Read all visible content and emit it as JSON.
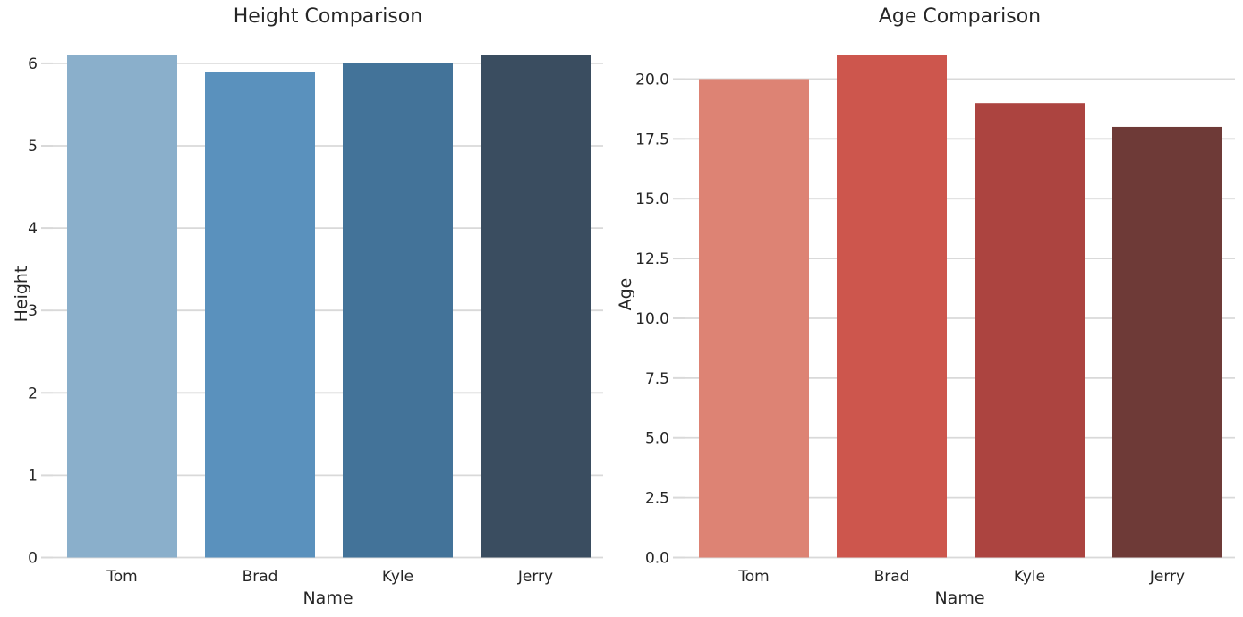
{
  "figure": {
    "background_color": "#ffffff",
    "grid_color": "#d9d9d9",
    "text_color": "#262626"
  },
  "chart_data": [
    {
      "type": "bar",
      "title": "Height Comparison",
      "xlabel": "Name",
      "ylabel": "Height",
      "categories": [
        "Tom",
        "Brad",
        "Kyle",
        "Jerry"
      ],
      "values": [
        6.1,
        5.9,
        6.0,
        6.1
      ],
      "bar_colors": [
        "#8aafcb",
        "#5a91bd",
        "#437399",
        "#3a4d60"
      ],
      "yticks": [
        0,
        1,
        2,
        3,
        4,
        5,
        6
      ],
      "ytick_labels": [
        "0",
        "1",
        "2",
        "3",
        "4",
        "5",
        "6"
      ],
      "ylim": [
        0,
        6.405
      ],
      "grid": true,
      "legend": null
    },
    {
      "type": "bar",
      "title": "Age Comparison",
      "xlabel": "Name",
      "ylabel": "Age",
      "categories": [
        "Tom",
        "Brad",
        "Kyle",
        "Jerry"
      ],
      "values": [
        20,
        21,
        19,
        18
      ],
      "bar_colors": [
        "#dd8374",
        "#cd564d",
        "#ac4440",
        "#6e3a37"
      ],
      "yticks": [
        0,
        2.5,
        5,
        7.5,
        10,
        12.5,
        15,
        17.5,
        20
      ],
      "ytick_labels": [
        "0.0",
        "2.5",
        "5.0",
        "7.5",
        "10.0",
        "12.5",
        "15.0",
        "17.5",
        "20.0"
      ],
      "ylim": [
        0,
        22.05
      ],
      "grid": true,
      "legend": null
    }
  ]
}
